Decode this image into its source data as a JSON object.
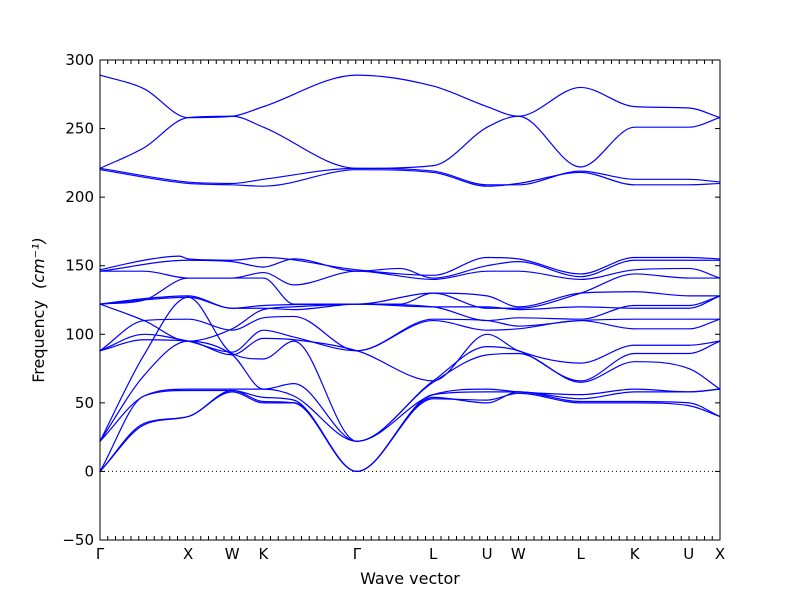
{
  "chart_data": {
    "type": "line",
    "xlabel": "Wave vector",
    "ylabel": "Frequency",
    "ylabel_unit": "(cm⁻¹)",
    "ylim": [
      -50,
      300
    ],
    "yticks": [
      -50,
      0,
      50,
      100,
      150,
      200,
      250,
      300
    ],
    "high_symmetry_points": [
      {
        "label": "Γ",
        "x": 0.0
      },
      {
        "label": "X",
        "x": 1.0
      },
      {
        "label": "W",
        "x": 1.5
      },
      {
        "label": "K",
        "x": 1.854
      },
      {
        "label": "Γ",
        "x": 2.915
      },
      {
        "label": "L",
        "x": 3.781
      },
      {
        "label": "U",
        "x": 4.393
      },
      {
        "label": "W",
        "x": 4.747
      },
      {
        "label": "L",
        "x": 5.454
      },
      {
        "label": "K",
        "x": 6.067
      },
      {
        "label": "U",
        "x": 6.681
      },
      {
        "label": "X",
        "x": 7.035
      }
    ],
    "zero_line": true,
    "line_color": "#0000ff",
    "series": [
      {
        "values": [
          [
            0.0,
            289
          ],
          [
            0.5,
            279
          ],
          [
            1.0,
            258
          ],
          [
            1.5,
            259
          ],
          [
            1.854,
            266
          ],
          [
            2.915,
            289
          ],
          [
            3.781,
            281
          ],
          [
            4.393,
            266
          ],
          [
            4.747,
            259
          ],
          [
            5.454,
            280
          ],
          [
            6.067,
            266
          ],
          [
            6.681,
            265
          ],
          [
            7.035,
            258
          ]
        ]
      },
      {
        "values": [
          [
            0.0,
            221
          ],
          [
            0.5,
            236
          ],
          [
            1.0,
            258
          ],
          [
            1.5,
            259
          ],
          [
            1.854,
            251
          ],
          [
            2.915,
            221
          ],
          [
            3.781,
            223
          ],
          [
            4.393,
            251
          ],
          [
            4.747,
            259
          ],
          [
            5.454,
            222
          ],
          [
            6.067,
            251
          ],
          [
            6.681,
            251
          ],
          [
            7.035,
            258
          ]
        ]
      },
      {
        "values": [
          [
            0.0,
            221
          ],
          [
            1.0,
            211
          ],
          [
            1.5,
            210
          ],
          [
            1.854,
            213
          ],
          [
            2.915,
            221
          ],
          [
            3.781,
            219
          ],
          [
            4.393,
            209
          ],
          [
            4.747,
            209
          ],
          [
            5.454,
            219
          ],
          [
            6.067,
            213
          ],
          [
            6.681,
            213
          ],
          [
            7.035,
            211
          ]
        ]
      },
      {
        "values": [
          [
            0.0,
            220
          ],
          [
            1.0,
            210
          ],
          [
            1.5,
            209
          ],
          [
            1.854,
            208
          ],
          [
            2.915,
            220
          ],
          [
            3.781,
            218
          ],
          [
            4.393,
            208
          ],
          [
            4.747,
            210
          ],
          [
            5.454,
            218
          ],
          [
            6.067,
            209
          ],
          [
            6.681,
            209
          ],
          [
            7.035,
            210
          ]
        ]
      },
      {
        "values": [
          [
            0.0,
            147
          ],
          [
            0.5,
            154
          ],
          [
            0.9,
            157
          ],
          [
            1.0,
            155
          ],
          [
            1.5,
            154
          ],
          [
            1.854,
            156
          ],
          [
            2.915,
            147
          ],
          [
            3.781,
            143
          ],
          [
            4.393,
            156
          ],
          [
            4.747,
            155
          ],
          [
            5.454,
            144
          ],
          [
            6.067,
            156
          ],
          [
            6.681,
            156
          ],
          [
            7.035,
            155
          ]
        ]
      },
      {
        "values": [
          [
            0.0,
            146
          ],
          [
            1.0,
            154
          ],
          [
            1.5,
            153
          ],
          [
            1.854,
            149
          ],
          [
            2.2,
            155
          ],
          [
            2.915,
            146
          ],
          [
            3.4,
            148
          ],
          [
            3.781,
            141
          ],
          [
            4.393,
            150
          ],
          [
            4.747,
            153
          ],
          [
            5.454,
            142
          ],
          [
            6.067,
            154
          ],
          [
            6.681,
            154
          ],
          [
            7.035,
            154
          ]
        ]
      },
      {
        "values": [
          [
            0.0,
            146
          ],
          [
            0.5,
            146
          ],
          [
            1.0,
            141
          ],
          [
            1.5,
            141
          ],
          [
            1.854,
            145
          ],
          [
            2.2,
            136
          ],
          [
            2.915,
            146
          ],
          [
            3.781,
            140
          ],
          [
            4.393,
            146
          ],
          [
            4.747,
            146
          ],
          [
            5.454,
            140
          ],
          [
            6.067,
            147
          ],
          [
            6.681,
            148
          ],
          [
            7.035,
            141
          ]
        ]
      },
      {
        "values": [
          [
            0.0,
            122
          ],
          [
            0.5,
            125
          ],
          [
            1.0,
            141
          ],
          [
            1.5,
            141
          ],
          [
            1.854,
            141
          ],
          [
            2.2,
            122
          ],
          [
            2.915,
            122
          ],
          [
            3.781,
            130
          ],
          [
            4.393,
            119
          ],
          [
            4.747,
            119
          ],
          [
            5.454,
            130
          ],
          [
            6.067,
            144
          ],
          [
            6.681,
            141
          ],
          [
            7.035,
            141
          ]
        ]
      },
      {
        "values": [
          [
            0.0,
            122
          ],
          [
            0.5,
            126
          ],
          [
            1.0,
            128
          ],
          [
            1.5,
            119
          ],
          [
            1.854,
            121
          ],
          [
            2.915,
            122
          ],
          [
            3.4,
            122
          ],
          [
            3.781,
            130
          ],
          [
            4.393,
            128
          ],
          [
            4.747,
            120
          ],
          [
            5.454,
            130
          ],
          [
            6.067,
            131
          ],
          [
            6.681,
            128
          ],
          [
            7.035,
            128
          ]
        ]
      },
      {
        "values": [
          [
            0.0,
            122
          ],
          [
            1.0,
            127
          ],
          [
            1.5,
            119
          ],
          [
            1.854,
            119
          ],
          [
            2.2,
            118
          ],
          [
            2.915,
            122
          ],
          [
            3.781,
            120
          ],
          [
            4.393,
            120
          ],
          [
            4.747,
            118
          ],
          [
            5.454,
            120
          ],
          [
            6.067,
            119
          ],
          [
            6.681,
            119
          ],
          [
            7.035,
            128
          ]
        ]
      },
      {
        "values": [
          [
            0.0,
            122
          ],
          [
            0.5,
            110
          ],
          [
            1.0,
            95
          ],
          [
            1.5,
            104
          ],
          [
            1.854,
            118
          ],
          [
            2.2,
            120
          ],
          [
            2.915,
            122
          ],
          [
            3.781,
            120
          ],
          [
            4.393,
            110
          ],
          [
            4.747,
            112
          ],
          [
            5.454,
            111
          ],
          [
            6.067,
            121
          ],
          [
            6.681,
            121
          ],
          [
            7.035,
            128
          ]
        ]
      },
      {
        "values": [
          [
            0.0,
            88
          ],
          [
            0.5,
            110
          ],
          [
            1.0,
            111
          ],
          [
            1.5,
            103
          ],
          [
            1.854,
            112
          ],
          [
            2.2,
            113
          ],
          [
            2.915,
            88
          ],
          [
            3.781,
            111
          ],
          [
            4.393,
            110
          ],
          [
            4.747,
            106
          ],
          [
            5.454,
            110
          ],
          [
            6.067,
            111
          ],
          [
            6.681,
            111
          ],
          [
            7.035,
            111
          ]
        ]
      },
      {
        "values": [
          [
            0.0,
            88
          ],
          [
            0.5,
            100
          ],
          [
            1.0,
            95
          ],
          [
            1.5,
            87
          ],
          [
            1.854,
            103
          ],
          [
            2.2,
            98
          ],
          [
            2.915,
            88
          ],
          [
            3.781,
            110
          ],
          [
            4.393,
            103
          ],
          [
            4.747,
            104
          ],
          [
            5.454,
            110
          ],
          [
            6.067,
            104
          ],
          [
            6.681,
            104
          ],
          [
            7.035,
            111
          ]
        ]
      },
      {
        "values": [
          [
            0.0,
            88
          ],
          [
            0.5,
            96
          ],
          [
            1.0,
            95
          ],
          [
            1.5,
            85
          ],
          [
            1.854,
            97
          ],
          [
            2.2,
            96
          ],
          [
            2.915,
            88
          ],
          [
            3.781,
            66
          ],
          [
            4.393,
            100
          ],
          [
            4.747,
            88
          ],
          [
            5.454,
            79
          ],
          [
            6.067,
            92
          ],
          [
            6.681,
            92
          ],
          [
            7.035,
            95
          ]
        ]
      },
      {
        "values": [
          [
            0.0,
            22
          ],
          [
            0.5,
            85
          ],
          [
            1.0,
            127
          ],
          [
            1.5,
            86
          ],
          [
            1.854,
            82
          ],
          [
            2.2,
            95
          ],
          [
            2.915,
            22
          ],
          [
            3.781,
            66
          ],
          [
            4.393,
            91
          ],
          [
            4.747,
            88
          ],
          [
            5.454,
            66
          ],
          [
            6.067,
            86
          ],
          [
            6.681,
            86
          ],
          [
            7.035,
            95
          ]
        ]
      },
      {
        "values": [
          [
            0.0,
            22
          ],
          [
            0.5,
            70
          ],
          [
            1.0,
            95
          ],
          [
            1.5,
            85
          ],
          [
            1.854,
            60
          ],
          [
            2.2,
            64
          ],
          [
            2.915,
            22
          ],
          [
            3.781,
            65
          ],
          [
            4.393,
            85
          ],
          [
            4.747,
            86
          ],
          [
            5.454,
            65
          ],
          [
            6.067,
            80
          ],
          [
            6.681,
            75
          ],
          [
            7.035,
            60
          ]
        ]
      },
      {
        "values": [
          [
            0.0,
            22
          ],
          [
            0.5,
            55
          ],
          [
            1.0,
            60
          ],
          [
            1.5,
            60
          ],
          [
            1.854,
            60
          ],
          [
            2.2,
            55
          ],
          [
            2.915,
            22
          ],
          [
            3.781,
            56
          ],
          [
            4.393,
            60
          ],
          [
            4.747,
            58
          ],
          [
            5.454,
            56
          ],
          [
            6.067,
            60
          ],
          [
            6.681,
            58
          ],
          [
            7.035,
            60
          ]
        ]
      },
      {
        "values": [
          [
            0.0,
            0
          ],
          [
            0.5,
            55
          ],
          [
            1.0,
            59
          ],
          [
            1.5,
            59
          ],
          [
            1.854,
            54
          ],
          [
            2.2,
            52
          ],
          [
            2.915,
            0
          ],
          [
            3.781,
            56
          ],
          [
            4.393,
            58
          ],
          [
            4.747,
            58
          ],
          [
            5.454,
            53
          ],
          [
            6.067,
            58
          ],
          [
            6.681,
            58
          ],
          [
            7.035,
            60
          ]
        ]
      },
      {
        "values": [
          [
            0.0,
            0
          ],
          [
            0.5,
            35
          ],
          [
            1.0,
            40
          ],
          [
            1.5,
            59
          ],
          [
            1.854,
            51
          ],
          [
            2.2,
            50
          ],
          [
            2.915,
            0
          ],
          [
            3.781,
            54
          ],
          [
            4.393,
            50
          ],
          [
            4.747,
            58
          ],
          [
            5.454,
            51
          ],
          [
            6.067,
            51
          ],
          [
            6.681,
            50
          ],
          [
            7.035,
            40
          ]
        ]
      },
      {
        "values": [
          [
            0.0,
            0
          ],
          [
            0.5,
            34
          ],
          [
            1.0,
            40
          ],
          [
            1.5,
            58
          ],
          [
            1.854,
            50
          ],
          [
            2.2,
            50
          ],
          [
            2.915,
            0
          ],
          [
            3.781,
            53
          ],
          [
            4.393,
            52
          ],
          [
            4.747,
            57
          ],
          [
            5.454,
            50
          ],
          [
            6.067,
            50
          ],
          [
            6.681,
            48
          ],
          [
            7.035,
            40
          ]
        ]
      }
    ]
  }
}
